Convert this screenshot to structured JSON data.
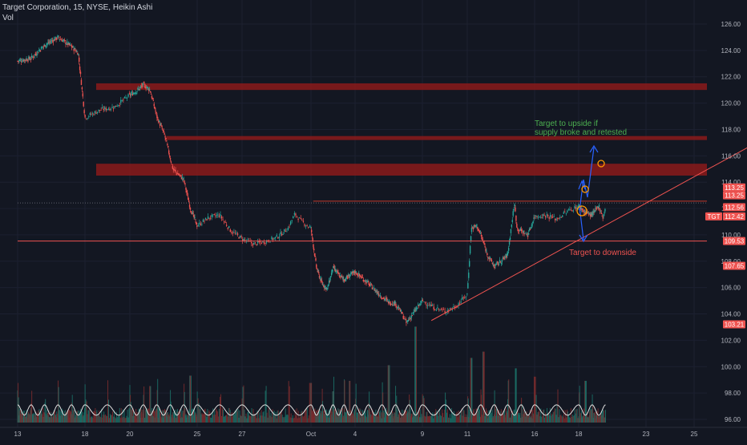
{
  "header": {
    "title": "Target Corporation, 15, NYSE, Heikin Ashi",
    "volume_label": "Vol"
  },
  "chart_data": {
    "type": "candlestick",
    "symbol": "TGT",
    "timeframe": "15",
    "exchange": "NYSE",
    "style": "Heikin Ashi",
    "x_tick_labels": [
      "13",
      "18",
      "20",
      "25",
      "27",
      "Oct",
      "4",
      "9",
      "11",
      "16",
      "18",
      "23",
      "25"
    ],
    "y_tick_labels": [
      "126.00",
      "124.00",
      "122.00",
      "120.00",
      "118.00",
      "116.00",
      "114.00",
      "112.00",
      "110.00",
      "108.00",
      "106.00",
      "104.00",
      "102.00",
      "100.00",
      "98.00",
      "96.00"
    ],
    "ylim": [
      95.5,
      127
    ],
    "price_path": [
      {
        "d": 13,
        "p": 123.2
      },
      {
        "d": 14,
        "p": 123.4
      },
      {
        "d": 15,
        "p": 124.4
      },
      {
        "d": 16,
        "p": 125.0
      },
      {
        "d": 17,
        "p": 124.3
      },
      {
        "d": 17.5,
        "p": 123.8
      },
      {
        "d": 18,
        "p": 118.9
      },
      {
        "d": 18.7,
        "p": 119.5
      },
      {
        "d": 19.3,
        "p": 119.7
      },
      {
        "d": 20,
        "p": 120.6
      },
      {
        "d": 20.6,
        "p": 121.0
      },
      {
        "d": 21,
        "p": 121.4
      },
      {
        "d": 21.5,
        "p": 121.0
      },
      {
        "d": 22,
        "p": 119.0
      },
      {
        "d": 22.6,
        "p": 117.5
      },
      {
        "d": 23.2,
        "p": 115.0
      },
      {
        "d": 24,
        "p": 114.2
      },
      {
        "d": 24.5,
        "p": 112.0
      },
      {
        "d": 25,
        "p": 110.7
      },
      {
        "d": 25.5,
        "p": 111.3
      },
      {
        "d": 26,
        "p": 111.5
      },
      {
        "d": 26.5,
        "p": 110.3
      },
      {
        "d": 27,
        "p": 109.7
      },
      {
        "d": 27.5,
        "p": 109.3
      },
      {
        "d": 28,
        "p": 109.5
      },
      {
        "d": 28.5,
        "p": 109.8
      },
      {
        "d": 29,
        "p": 110.5
      },
      {
        "d": 29.3,
        "p": 111.6
      },
      {
        "d": 29.6,
        "p": 111.0
      },
      {
        "d": 30,
        "p": 110.5
      },
      {
        "d": 30.5,
        "p": 107.5
      },
      {
        "d": 31,
        "p": 106.3
      },
      {
        "d": 31.5,
        "p": 105.9
      },
      {
        "d": 32,
        "p": 107.5
      },
      {
        "d": 32.5,
        "p": 107.0
      },
      {
        "d": 33,
        "p": 106.6
      },
      {
        "d": 33.5,
        "p": 106.9
      },
      {
        "d": 34,
        "p": 107.2
      },
      {
        "d": 35,
        "p": 106.3
      },
      {
        "d": 36,
        "p": 105.3
      },
      {
        "d": 36.5,
        "p": 104.9
      },
      {
        "d": 37,
        "p": 104.8
      },
      {
        "d": 37.5,
        "p": 104.0
      },
      {
        "d": 37.8,
        "p": 103.3
      },
      {
        "d": 38.5,
        "p": 104.3
      },
      {
        "d": 39,
        "p": 105.0
      },
      {
        "d": 39.5,
        "p": 104.5
      },
      {
        "d": 40,
        "p": 104.2
      },
      {
        "d": 40.5,
        "p": 104.6
      },
      {
        "d": 41,
        "p": 105.5
      },
      {
        "d": 41.3,
        "p": 110.5
      },
      {
        "d": 41.7,
        "p": 110.7
      },
      {
        "d": 42,
        "p": 110.0
      },
      {
        "d": 42.5,
        "p": 108.5
      },
      {
        "d": 43,
        "p": 107.6
      },
      {
        "d": 43.5,
        "p": 108.0
      },
      {
        "d": 44,
        "p": 108.5
      },
      {
        "d": 44.5,
        "p": 112.4
      },
      {
        "d": 44.7,
        "p": 110.5
      },
      {
        "d": 45,
        "p": 110.3
      },
      {
        "d": 45.5,
        "p": 110.0
      },
      {
        "d": 46,
        "p": 111.4
      },
      {
        "d": 46.5,
        "p": 111.5
      },
      {
        "d": 47,
        "p": 111.2
      },
      {
        "d": 47.5,
        "p": 111.8
      },
      {
        "d": 48,
        "p": 112.2
      },
      {
        "d": 48.5,
        "p": 111.7
      },
      {
        "d": 49,
        "p": 111.5
      },
      {
        "d": 49.5,
        "p": 112.2
      },
      {
        "d": 49.8,
        "p": 111.3
      },
      {
        "d": 50,
        "p": 112.1
      }
    ],
    "volume_spikes": [
      {
        "d": 21.5,
        "h": 0.35
      },
      {
        "d": 24.5,
        "h": 0.45
      },
      {
        "d": 30.0,
        "h": 0.38
      },
      {
        "d": 32.0,
        "h": 0.3
      },
      {
        "d": 33.5,
        "h": 0.4
      },
      {
        "d": 36.5,
        "h": 0.55
      },
      {
        "d": 38.5,
        "h": 0.92
      },
      {
        "d": 41.3,
        "h": 0.62
      },
      {
        "d": 42.2,
        "h": 0.68
      },
      {
        "d": 44.6,
        "h": 0.52
      },
      {
        "d": 46.0,
        "h": 0.44
      },
      {
        "d": 48.5,
        "h": 0.4
      }
    ],
    "volume_ma_label": "",
    "zones": [
      {
        "from": 121.0,
        "to": 121.5,
        "d_start": 18.5,
        "label": ""
      },
      {
        "from": 117.2,
        "to": 117.5,
        "d_start": 22.7,
        "label": ""
      },
      {
        "from": 114.5,
        "to": 115.4,
        "d_start": 18.5,
        "label": ""
      }
    ],
    "horizontal_lines": [
      {
        "price": 112.56,
        "d_start": 30.2,
        "color": "#c0392b"
      },
      {
        "price": 112.42,
        "d_start": 13.0,
        "color": "#5d606b",
        "dotted": true
      },
      {
        "price": 109.53,
        "d_start": 13.0,
        "color": "#ef5350"
      }
    ],
    "trendline": {
      "d1": 39.4,
      "p1": 103.5,
      "d2": 60.0,
      "p2": 119.4
    },
    "price_labels": [
      {
        "text": "113.25",
        "price": 113.6,
        "bg": "#ef5350"
      },
      {
        "text": "113.25",
        "price": 113.0,
        "bg": "#ef5350"
      },
      {
        "text": "112.56",
        "price": 112.1,
        "bg": "#ef5350"
      },
      {
        "text": "112.42",
        "price": 111.4,
        "bg": "#ef5350"
      },
      {
        "text": "109.53",
        "price": 109.53,
        "bg": "#ef5350"
      },
      {
        "text": "107.65",
        "price": 107.65,
        "bg": "#ef5350"
      },
      {
        "text": "103.21",
        "price": 103.21,
        "bg": "#ef5350"
      }
    ],
    "symbol_tag": {
      "text": "TGT",
      "price": 111.4
    },
    "annotations": {
      "upside": "Target to upside if\nsupply broke and retested",
      "downside": "Target to downside"
    },
    "colors": {
      "up": "#26a69a",
      "down": "#ef5350",
      "zone": "#8b1a1a",
      "trend": "#ef5350",
      "arrows": "#2962ff",
      "circle": "#ff9800",
      "vol_ma": "#e0e0e0",
      "annotation_up": "#4caf50",
      "annotation_down": "#ef5350"
    }
  }
}
